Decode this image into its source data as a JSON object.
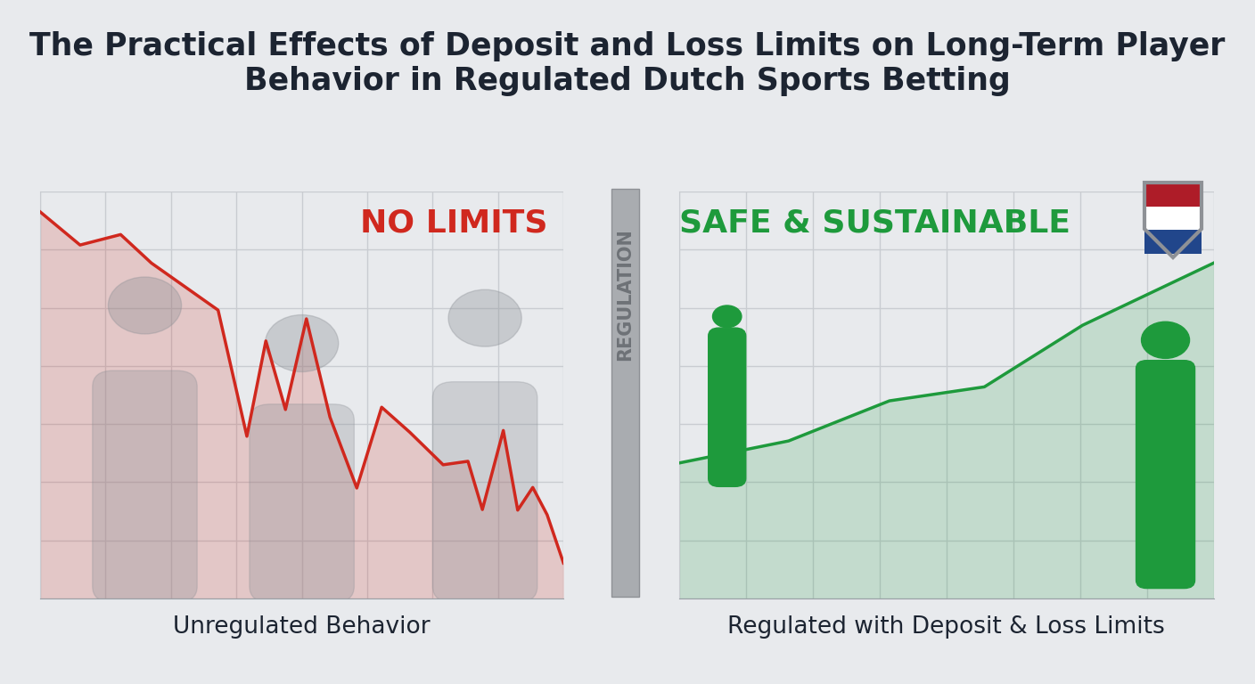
{
  "title": "The Practical Effects of Deposit and Loss Limits on Long-Term Player Behavior in Regulated Dutch Sports Betting",
  "divider_label": "REGULATION",
  "chart_data": [
    {
      "type": "area",
      "title": "NO LIMITS",
      "x_label": "Unregulated Behavior",
      "color": "#d0281e",
      "x": [
        0,
        0.61,
        1.23,
        1.7,
        2.72,
        3.16,
        3.45,
        3.75,
        4.07,
        4.43,
        4.84,
        5.22,
        5.65,
        6.16,
        6.54,
        6.76,
        7.08,
        7.3,
        7.53,
        7.75,
        8.0
      ],
      "values": [
        6.65,
        6.08,
        6.26,
        5.77,
        4.96,
        2.79,
        4.43,
        3.25,
        4.81,
        3.12,
        1.9,
        3.29,
        2.86,
        2.3,
        2.36,
        1.53,
        2.89,
        1.52,
        1.91,
        1.44,
        0.61
      ],
      "xlim": [
        0,
        8
      ],
      "ylim": [
        0,
        7
      ],
      "xticks": [
        0,
        1,
        2,
        3,
        4,
        5,
        6,
        7,
        8
      ],
      "yticks": [
        0,
        1,
        2,
        3,
        4,
        5,
        6,
        7
      ],
      "grid": true,
      "tick_labels": false
    },
    {
      "type": "area",
      "title": "SAFE & SUSTAINABLE",
      "x_label": "Regulated with Deposit & Loss Limits",
      "color": "#1e9a3c",
      "x": [
        0,
        1.64,
        3.15,
        4.57,
        6.04,
        8.0
      ],
      "values": [
        2.33,
        2.71,
        3.4,
        3.64,
        4.7,
        5.77
      ],
      "xlim": [
        0,
        8
      ],
      "ylim": [
        0,
        7
      ],
      "xticks": [
        0,
        1,
        2,
        3,
        4,
        5,
        6,
        7,
        8
      ],
      "yticks": [
        0,
        1,
        2,
        3,
        4,
        5,
        6,
        7
      ],
      "grid": true,
      "tick_labels": false
    }
  ]
}
